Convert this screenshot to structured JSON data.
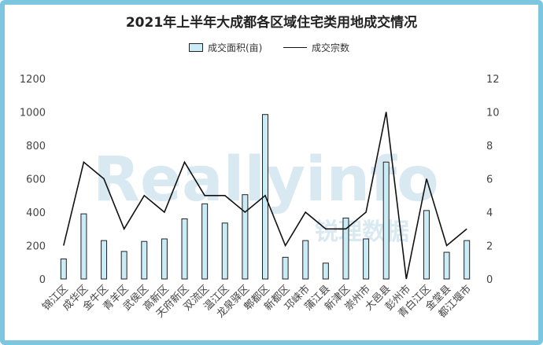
{
  "chart_data": {
    "type": "bar+line",
    "title": "2021年上半年大成都各区域住宅类用地成交情况",
    "categories": [
      "锦江区",
      "成华区",
      "金牛区",
      "青羊区",
      "武侯区",
      "高新区",
      "天府新区",
      "双流区",
      "温江区",
      "龙泉驿区",
      "郫都区",
      "新都区",
      "邛崃市",
      "蒲江县",
      "新津区",
      "崇州市",
      "大邑县",
      "彭州市",
      "青白江区",
      "金堂县",
      "都江堰市"
    ],
    "series": [
      {
        "name": "成交面积(亩)",
        "type": "bar",
        "axis": "left",
        "values": [
          120,
          390,
          230,
          165,
          225,
          240,
          360,
          450,
          335,
          505,
          985,
          130,
          230,
          95,
          365,
          240,
          700,
          0,
          410,
          160,
          230
        ]
      },
      {
        "name": "成交宗数",
        "type": "line",
        "axis": "right",
        "values": [
          2,
          7,
          6,
          3,
          5,
          4,
          7,
          5,
          5,
          4,
          5,
          2,
          4,
          3,
          3,
          4,
          10,
          0,
          6,
          2,
          3
        ]
      }
    ],
    "y_left": {
      "ylim": [
        0,
        1200
      ],
      "ticks": [
        0,
        200,
        400,
        600,
        800,
        1000,
        1200
      ]
    },
    "y_right": {
      "ylim": [
        0,
        12
      ],
      "ticks": [
        0,
        2,
        4,
        6,
        8,
        10,
        12
      ]
    },
    "legend_position": "top-center",
    "grid": false,
    "colors": {
      "bar_fill": "#c9ecf6",
      "bar_stroke": "#222222",
      "line": "#111111",
      "border": "#7cc6df"
    }
  },
  "watermark": {
    "text": "Reallyinfo",
    "subtext": "锐理数据"
  }
}
